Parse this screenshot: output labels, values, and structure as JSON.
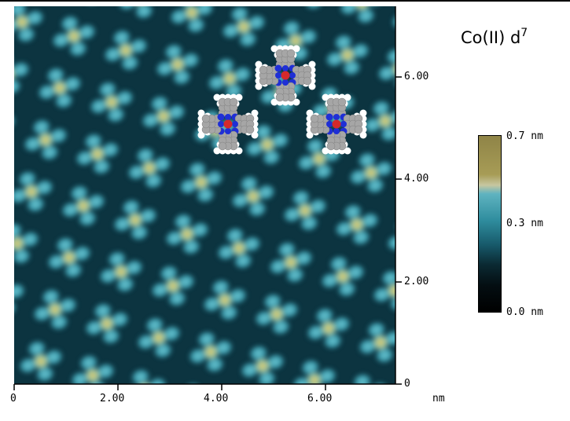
{
  "title": {
    "prefix": "Co(II) d",
    "superscript": "7"
  },
  "x_axis": {
    "ticks": [
      "0",
      "2.00",
      "4.00",
      "6.00"
    ],
    "unit": "nm"
  },
  "y_axis": {
    "ticks": [
      "6.00",
      "4.00",
      "2.00",
      "0"
    ]
  },
  "colorbar": {
    "labels": [
      "0.7 nm",
      "0.3 nm",
      "0.0 nm"
    ]
  },
  "colors": {
    "background_dark": "#0a2c36",
    "surface_cyan": "#3d9fae",
    "molecule_center": "#d42a2a",
    "molecule_nitrogen": "#1f2fd6",
    "molecule_carbon": "#a6a6a6"
  }
}
